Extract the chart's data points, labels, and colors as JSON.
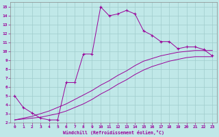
{
  "xlabel": "Windchill (Refroidissement éolien,°C)",
  "bg_color": "#c0e8e8",
  "grid_color": "#a0cccc",
  "line_color": "#990099",
  "xlim": [
    -0.5,
    23.5
  ],
  "ylim": [
    2,
    15.5
  ],
  "xticks": [
    0,
    1,
    2,
    3,
    4,
    5,
    6,
    7,
    8,
    9,
    10,
    11,
    12,
    13,
    14,
    15,
    16,
    17,
    18,
    19,
    20,
    21,
    22,
    23
  ],
  "yticks": [
    2,
    3,
    4,
    5,
    6,
    7,
    8,
    9,
    10,
    11,
    12,
    13,
    14,
    15
  ],
  "main_x": [
    0,
    1,
    2,
    3,
    4,
    5,
    6,
    7,
    8,
    9,
    10,
    11,
    12,
    13,
    14,
    15,
    16,
    17,
    18,
    19,
    20,
    21,
    22,
    23
  ],
  "main_y": [
    5.0,
    3.7,
    3.1,
    2.5,
    2.3,
    2.3,
    6.5,
    6.5,
    9.7,
    9.7,
    15.0,
    14.0,
    14.2,
    14.6,
    14.2,
    12.3,
    11.8,
    11.1,
    11.1,
    10.3,
    10.5,
    10.5,
    10.2,
    9.5
  ],
  "line2_x": [
    0,
    1,
    2,
    3,
    4,
    5,
    6,
    7,
    8,
    9,
    10,
    11,
    12,
    13,
    14,
    15,
    16,
    17,
    18,
    19,
    20,
    21,
    22,
    23
  ],
  "line2_y": [
    2.3,
    2.4,
    2.5,
    2.6,
    2.8,
    3.0,
    3.3,
    3.7,
    4.1,
    4.6,
    5.2,
    5.7,
    6.3,
    6.8,
    7.4,
    7.9,
    8.3,
    8.6,
    8.9,
    9.1,
    9.3,
    9.4,
    9.4,
    9.4
  ],
  "line3_x": [
    0,
    1,
    2,
    3,
    4,
    5,
    6,
    7,
    8,
    9,
    10,
    11,
    12,
    13,
    14,
    15,
    16,
    17,
    18,
    19,
    20,
    21,
    22,
    23
  ],
  "line3_y": [
    2.3,
    2.5,
    2.7,
    3.0,
    3.3,
    3.7,
    4.1,
    4.6,
    5.1,
    5.6,
    6.2,
    6.7,
    7.3,
    7.8,
    8.4,
    8.9,
    9.2,
    9.5,
    9.7,
    9.9,
    10.0,
    10.1,
    10.1,
    10.1
  ]
}
